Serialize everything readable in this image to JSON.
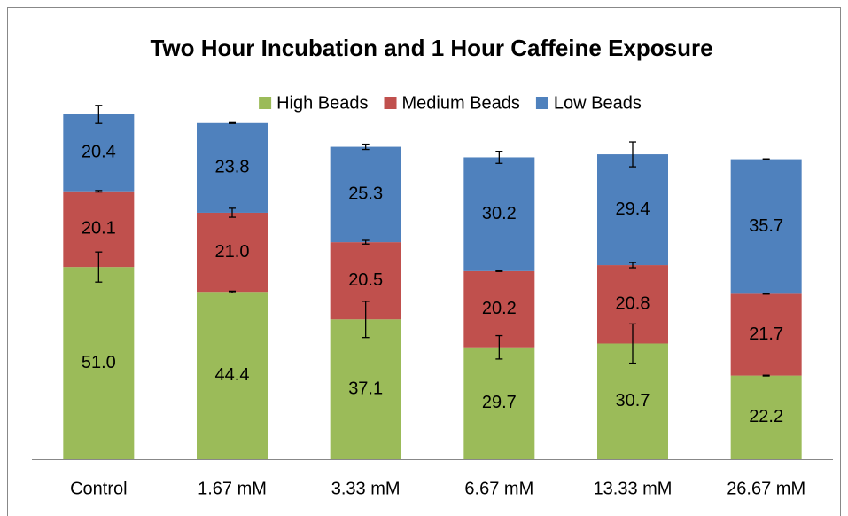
{
  "chart_data": {
    "type": "stacked_bar",
    "title": "Two Hour Incubation and 1 Hour Caffeine Exposure",
    "categories": [
      "Control",
      "1.67 mM",
      "3.33 mM",
      "6.67 mM",
      "13.33 mM",
      "26.67 mM"
    ],
    "legend": "top",
    "series": [
      {
        "name": "High Beads",
        "color": "#9bbb59",
        "values": [
          51.0,
          44.4,
          37.1,
          29.7,
          30.7,
          22.2
        ],
        "value_labels": [
          "51.0",
          "44.4",
          "37.1",
          "29.7",
          "30.7",
          "22.2"
        ],
        "errors": [
          4.0,
          0.2,
          4.8,
          3.1,
          5.2,
          0.1
        ]
      },
      {
        "name": "Medium Beads",
        "color": "#c0504d",
        "values": [
          20.1,
          21.0,
          20.5,
          20.2,
          20.8,
          21.7
        ],
        "value_labels": [
          "20.1",
          "21.0",
          "20.5",
          "20.2",
          "20.8",
          "21.7"
        ],
        "errors": [
          0.2,
          1.2,
          0.5,
          0.1,
          0.7,
          0.1
        ]
      },
      {
        "name": "Low Beads",
        "color": "#4f81bd",
        "values": [
          20.4,
          23.8,
          25.3,
          30.2,
          29.4,
          35.7
        ],
        "value_labels": [
          "20.4",
          "23.8",
          "25.3",
          "30.2",
          "29.4",
          "35.7"
        ],
        "errors": [
          2.4,
          0.1,
          0.7,
          1.6,
          3.3,
          0.1
        ]
      }
    ]
  }
}
